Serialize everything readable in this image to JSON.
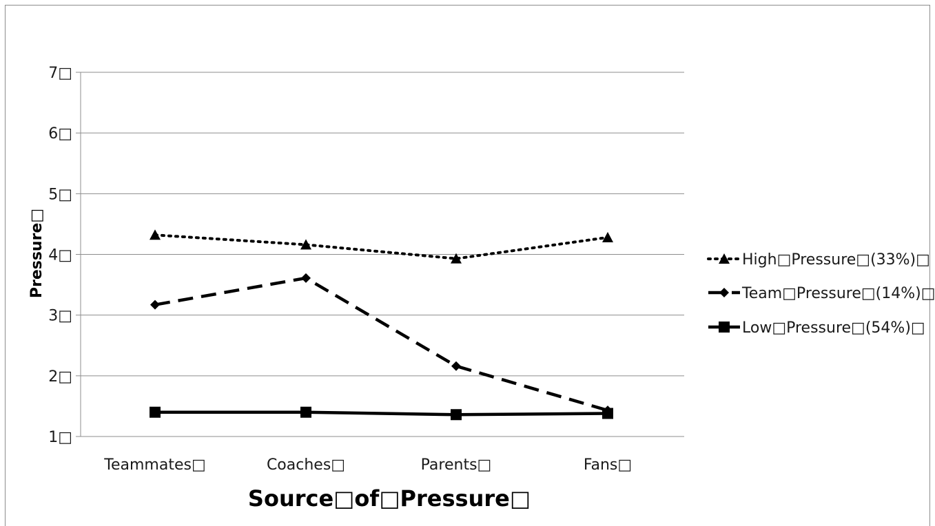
{
  "chart_data": {
    "type": "line",
    "xlabel": "Source□of□Pressure□",
    "ylabel": "Pressure□",
    "categories": [
      "Teammates□",
      "Coaches□",
      "Parents□",
      "Fans□"
    ],
    "y_ticks": [
      "1□",
      "2□",
      "3□",
      "4□",
      "5□",
      "6□",
      "7□"
    ],
    "ylim": [
      1,
      7
    ],
    "grid": true,
    "legend_position": "right",
    "series": [
      {
        "name": "High□Pressure□(33%)□",
        "values": [
          4.32,
          4.16,
          3.93,
          4.28
        ],
        "line_style": "dotted",
        "marker": "triangle",
        "color": "#000000"
      },
      {
        "name": "Team□Pressure□(14%)□",
        "values": [
          3.17,
          3.61,
          2.16,
          1.43
        ],
        "line_style": "dashed",
        "marker": "diamond",
        "color": "#000000"
      },
      {
        "name": "Low□Pressure□(54%)□",
        "values": [
          1.4,
          1.4,
          1.36,
          1.38
        ],
        "line_style": "solid",
        "marker": "square",
        "color": "#000000"
      }
    ]
  }
}
